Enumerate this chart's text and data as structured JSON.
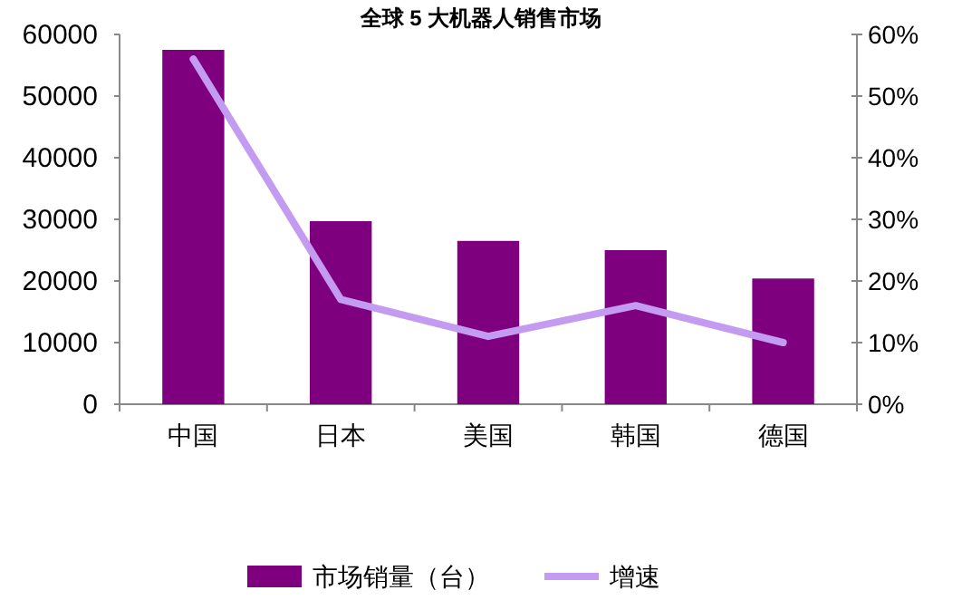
{
  "chart_data": {
    "type": "bar",
    "title": "全球 5 大机器人销售市场",
    "categories": [
      "中国",
      "日本",
      "美国",
      "韩国",
      "德国"
    ],
    "series": [
      {
        "name": "市场销量（台）",
        "color": "#7f007f",
        "values": [
          57500,
          29700,
          26500,
          25000,
          20400
        ]
      },
      {
        "name": "增速",
        "type": "line",
        "axis": "y2",
        "color": "#c39bf0",
        "values": [
          56,
          17,
          11,
          16,
          10
        ]
      }
    ],
    "ylim": [
      0,
      60000
    ],
    "yticks": [
      0,
      10000,
      20000,
      30000,
      40000,
      50000,
      60000
    ],
    "y2lim": [
      0,
      60
    ],
    "y2ticks": [
      {
        "value": 0,
        "label": "0%"
      },
      {
        "value": 10,
        "label": "10%"
      },
      {
        "value": 20,
        "label": "20%"
      },
      {
        "value": 30,
        "label": "30%"
      },
      {
        "value": 40,
        "label": "40%"
      },
      {
        "value": 50,
        "label": "50%"
      },
      {
        "value": 60,
        "label": "60%"
      }
    ],
    "grid": false,
    "legend": "bottom",
    "marker": "none"
  }
}
